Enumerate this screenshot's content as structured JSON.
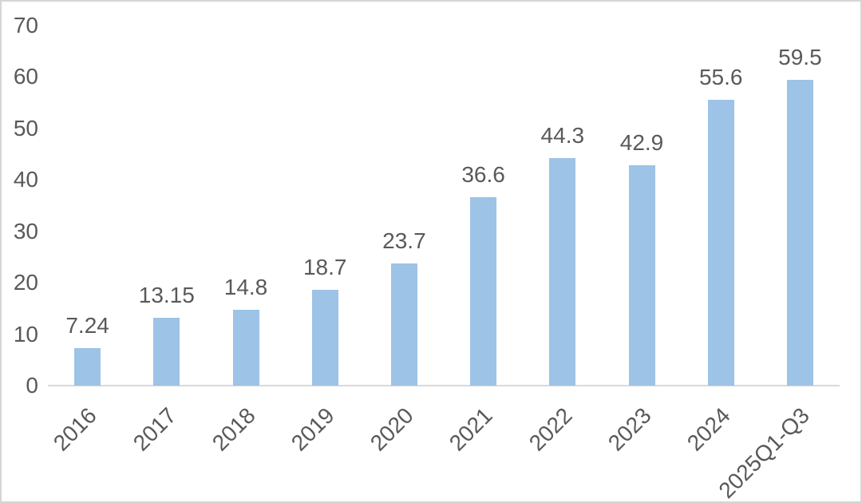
{
  "chart_data": {
    "type": "bar",
    "title": "",
    "xlabel": "",
    "ylabel": "",
    "categories": [
      "2016",
      "2017",
      "2018",
      "2019",
      "2020",
      "2021",
      "2022",
      "2023",
      "2024",
      "2025Q1-Q3"
    ],
    "values": [
      7.24,
      13.15,
      14.8,
      18.7,
      23.7,
      36.6,
      44.3,
      42.9,
      55.6,
      59.5
    ],
    "data_labels": [
      "7.24",
      "13.15",
      "14.8",
      "18.7",
      "23.7",
      "36.6",
      "44.3",
      "42.9",
      "55.6",
      "59.5"
    ],
    "ylim": [
      0,
      70
    ],
    "yticks": [
      0,
      10,
      20,
      30,
      40,
      50,
      60,
      70
    ],
    "grid": false,
    "legend": "none",
    "x_label_rotation_deg": -45,
    "colors": {
      "bar": "#9DC3E6",
      "text": "#595959",
      "axis_line": "#D9D9D9",
      "background": "#FFFFFF",
      "frame_border": "#D5D5D5"
    }
  }
}
